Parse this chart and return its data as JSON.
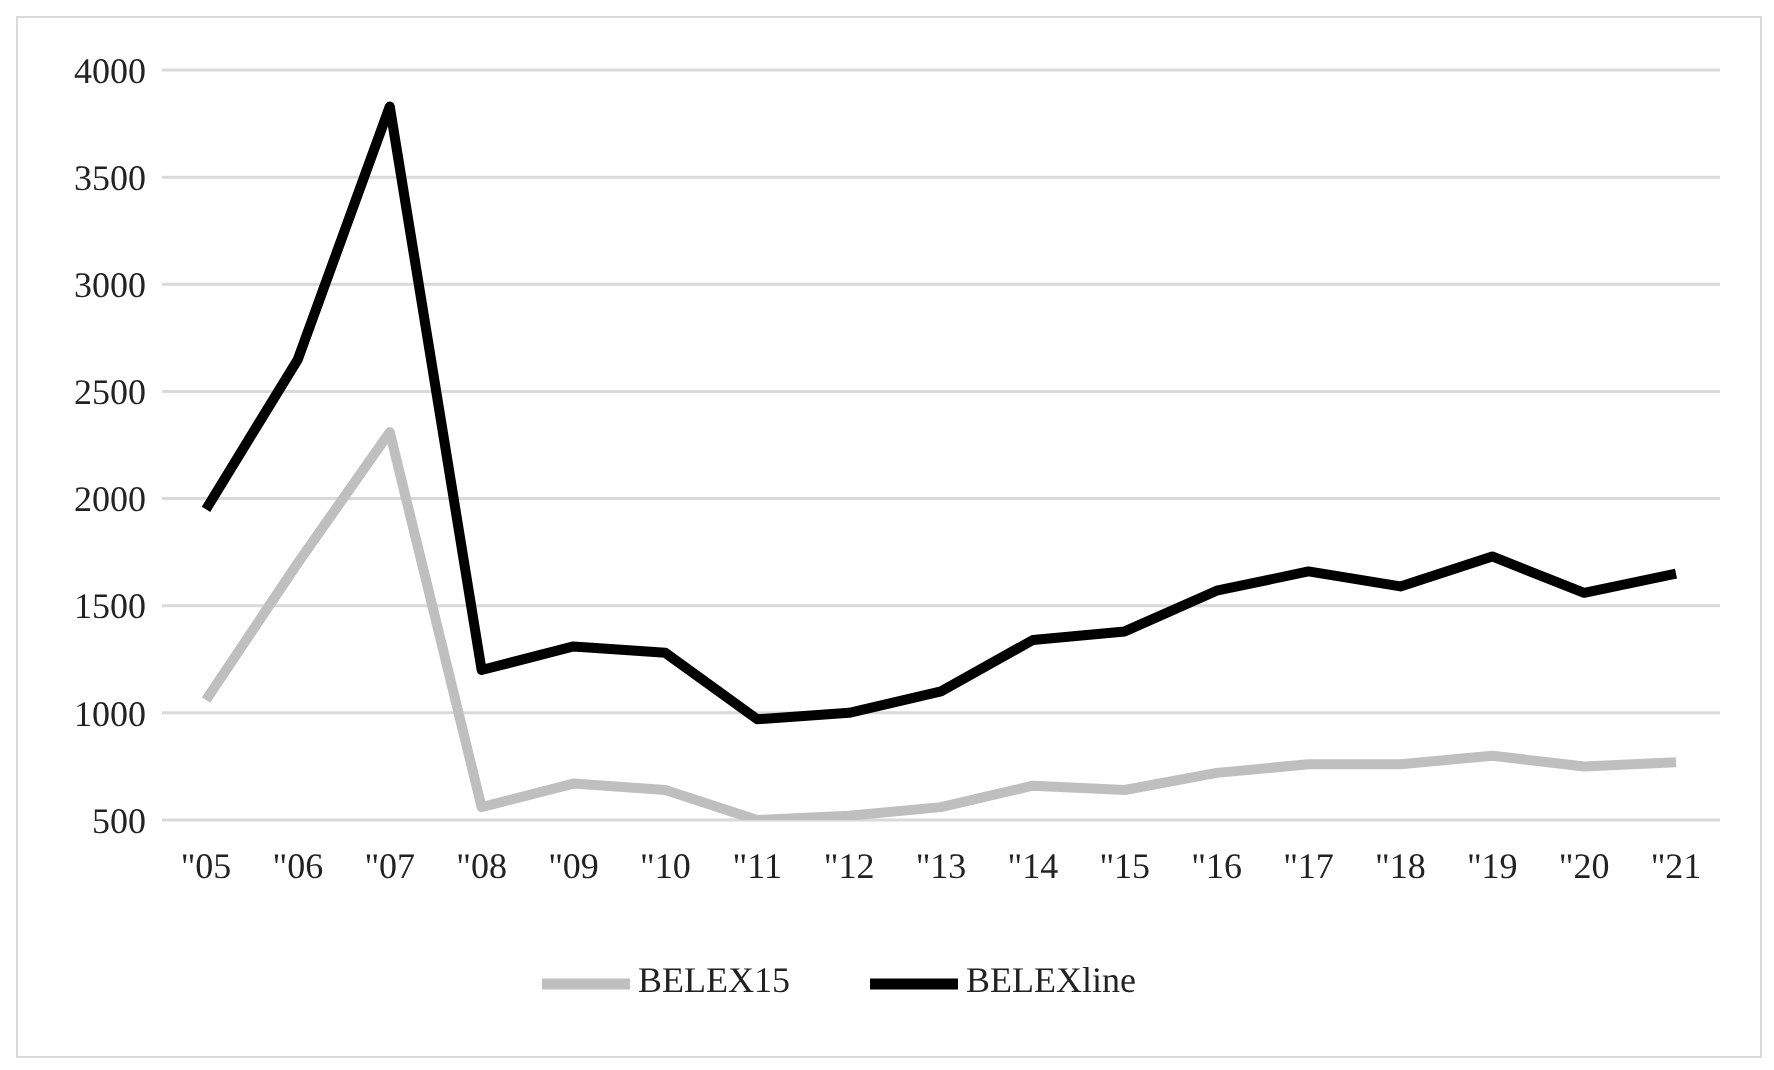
{
  "chart_data": {
    "type": "line",
    "categories": [
      "\"05",
      "\"06",
      "\"07",
      "\"08",
      "\"09",
      "\"10",
      "\"11",
      "\"12",
      "\"13",
      "\"14",
      "\"15",
      "\"16",
      "\"17",
      "\"18",
      "\"19",
      "\"20",
      "\"21"
    ],
    "series": [
      {
        "name": "BELEX15",
        "color": "#bfbfbf",
        "values": [
          1060,
          1700,
          2310,
          560,
          670,
          640,
          500,
          520,
          560,
          660,
          640,
          720,
          760,
          760,
          800,
          750,
          770
        ]
      },
      {
        "name": "BELEXline",
        "color": "#000000",
        "values": [
          1950,
          2650,
          3830,
          1200,
          1310,
          1280,
          970,
          1000,
          1100,
          1340,
          1380,
          1570,
          1660,
          1590,
          1730,
          1560,
          1650
        ]
      }
    ],
    "ylim": [
      500,
      4000
    ],
    "yticks": [
      500,
      1000,
      1500,
      2000,
      2500,
      3000,
      3500,
      4000
    ],
    "grid": "y",
    "legend": "bottom",
    "marker": "none",
    "line_style": "solid"
  }
}
